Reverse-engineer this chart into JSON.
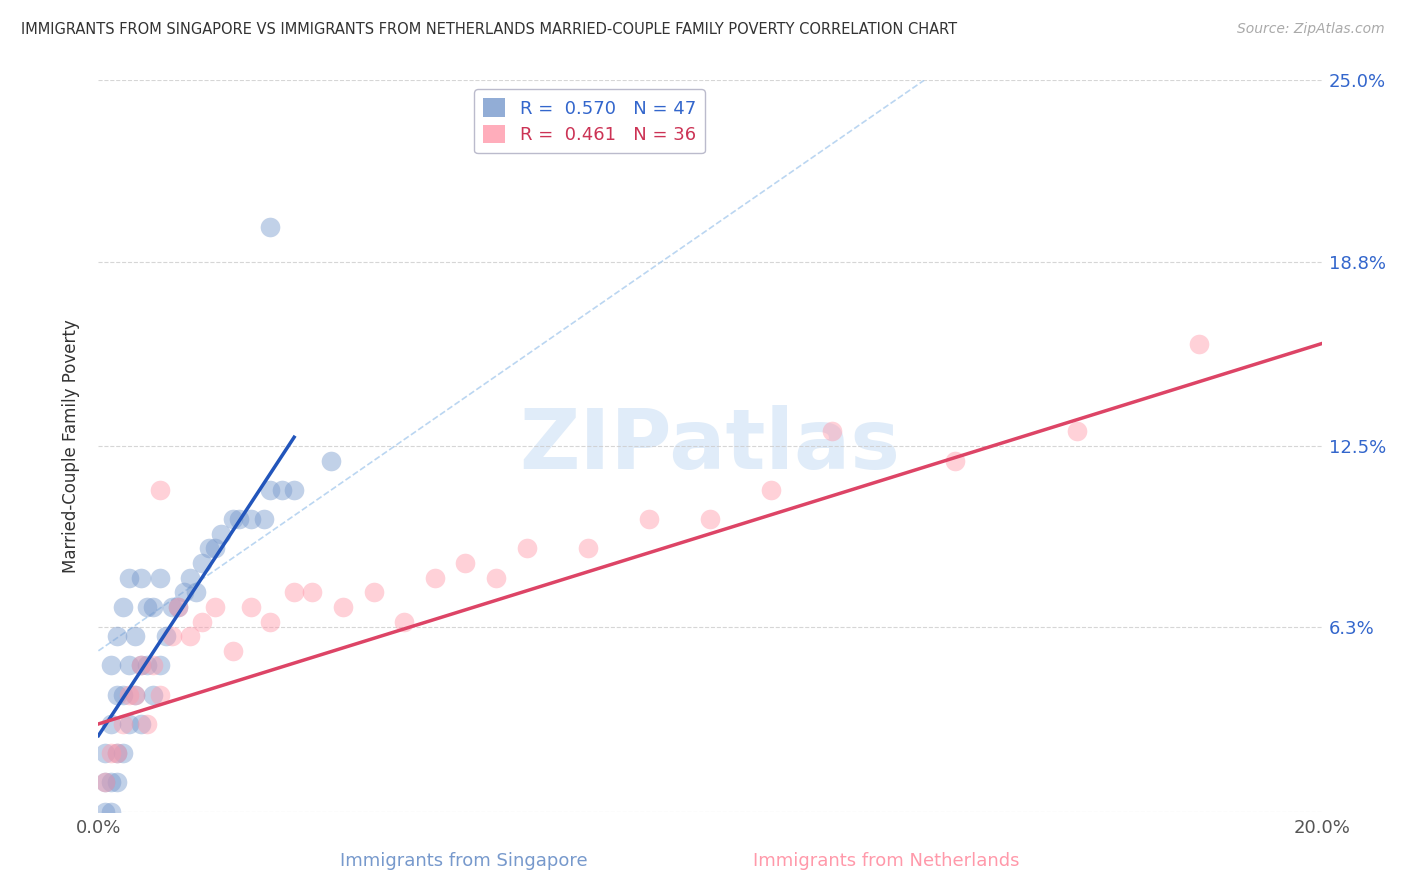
{
  "title": "IMMIGRANTS FROM SINGAPORE VS IMMIGRANTS FROM NETHERLANDS MARRIED-COUPLE FAMILY POVERTY CORRELATION CHART",
  "source": "Source: ZipAtlas.com",
  "xlabel_left": "Immigrants from Singapore",
  "xlabel_right": "Immigrants from Netherlands",
  "ylabel": "Married-Couple Family Poverty",
  "xlim": [
    0.0,
    0.2
  ],
  "ylim": [
    0.0,
    0.25
  ],
  "yticks": [
    0.0,
    0.063,
    0.125,
    0.188,
    0.25
  ],
  "ytick_labels_right": [
    "",
    "6.3%",
    "12.5%",
    "18.8%",
    "25.0%"
  ],
  "xticks": [
    0.0,
    0.05,
    0.1,
    0.15,
    0.2
  ],
  "xtick_labels": [
    "0.0%",
    "",
    "",
    "",
    "20.0%"
  ],
  "grid_color": "#cccccc",
  "background_color": "#ffffff",
  "singapore_color": "#7799cc",
  "netherlands_color": "#ff99aa",
  "singapore_line_color": "#2255bb",
  "netherlands_line_color": "#dd4466",
  "singapore_R": 0.57,
  "singapore_N": 47,
  "netherlands_R": 0.461,
  "netherlands_N": 36,
  "watermark_text": "ZIPatlas",
  "sg_x": [
    0.001,
    0.001,
    0.001,
    0.002,
    0.002,
    0.002,
    0.002,
    0.003,
    0.003,
    0.003,
    0.003,
    0.004,
    0.004,
    0.004,
    0.005,
    0.005,
    0.005,
    0.006,
    0.006,
    0.007,
    0.007,
    0.007,
    0.008,
    0.008,
    0.009,
    0.009,
    0.01,
    0.01,
    0.011,
    0.012,
    0.013,
    0.014,
    0.015,
    0.016,
    0.017,
    0.018,
    0.019,
    0.02,
    0.022,
    0.023,
    0.025,
    0.027,
    0.028,
    0.03,
    0.032,
    0.038,
    0.028
  ],
  "sg_y": [
    0.0,
    0.01,
    0.02,
    0.0,
    0.01,
    0.03,
    0.05,
    0.01,
    0.02,
    0.04,
    0.06,
    0.02,
    0.04,
    0.07,
    0.03,
    0.05,
    0.08,
    0.04,
    0.06,
    0.03,
    0.05,
    0.08,
    0.05,
    0.07,
    0.04,
    0.07,
    0.05,
    0.08,
    0.06,
    0.07,
    0.07,
    0.075,
    0.08,
    0.075,
    0.085,
    0.09,
    0.09,
    0.095,
    0.1,
    0.1,
    0.1,
    0.1,
    0.11,
    0.11,
    0.11,
    0.12,
    0.2
  ],
  "nl_x": [
    0.001,
    0.002,
    0.003,
    0.004,
    0.005,
    0.006,
    0.007,
    0.008,
    0.009,
    0.01,
    0.012,
    0.013,
    0.015,
    0.017,
    0.019,
    0.022,
    0.025,
    0.028,
    0.032,
    0.035,
    0.04,
    0.045,
    0.05,
    0.055,
    0.06,
    0.065,
    0.07,
    0.08,
    0.09,
    0.1,
    0.11,
    0.12,
    0.14,
    0.16,
    0.18,
    0.01
  ],
  "nl_y": [
    0.01,
    0.02,
    0.02,
    0.03,
    0.04,
    0.04,
    0.05,
    0.03,
    0.05,
    0.04,
    0.06,
    0.07,
    0.06,
    0.065,
    0.07,
    0.055,
    0.07,
    0.065,
    0.075,
    0.075,
    0.07,
    0.075,
    0.065,
    0.08,
    0.085,
    0.08,
    0.09,
    0.09,
    0.1,
    0.1,
    0.11,
    0.13,
    0.12,
    0.13,
    0.16,
    0.11
  ],
  "sg_line_x0": 0.0,
  "sg_line_x1": 0.032,
  "sg_line_y0": 0.026,
  "sg_line_y1": 0.128,
  "nl_line_x0": 0.0,
  "nl_line_x1": 0.2,
  "nl_line_y0": 0.03,
  "nl_line_y1": 0.16,
  "dash_line_x0": 0.0,
  "dash_line_x1": 0.135,
  "dash_line_y0": 0.055,
  "dash_line_y1": 0.25
}
